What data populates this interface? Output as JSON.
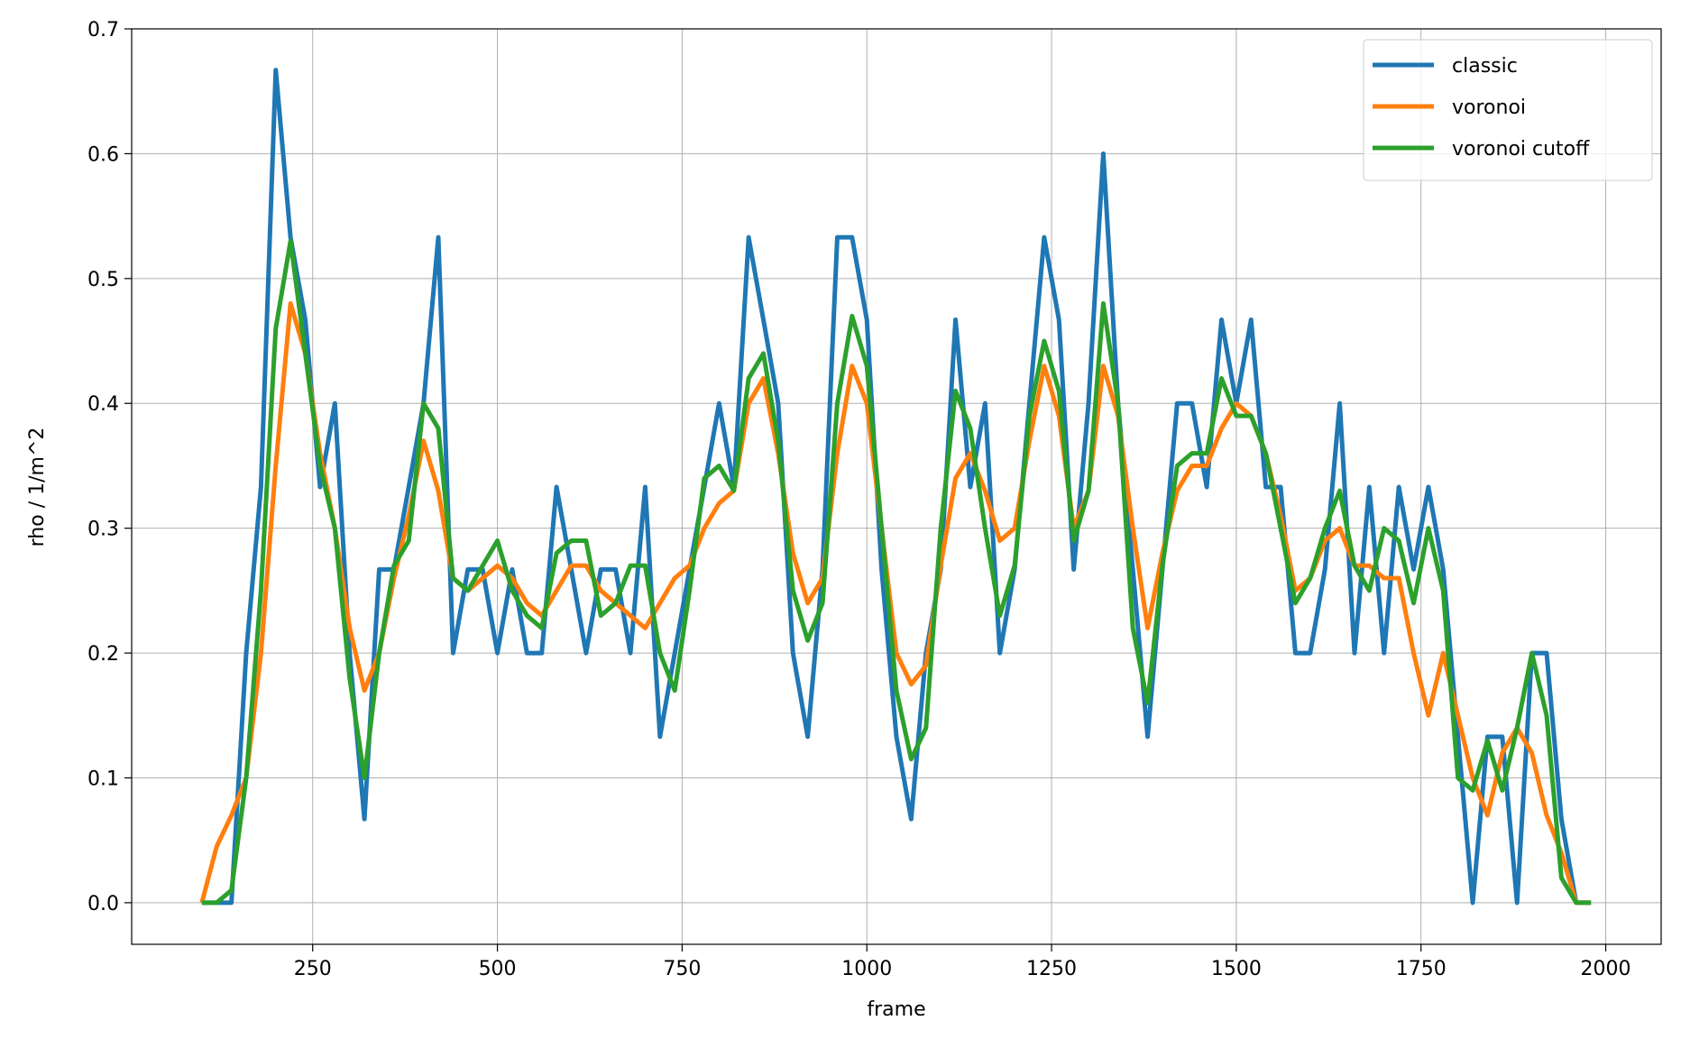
{
  "chart_data": {
    "type": "line",
    "x_label": "frame",
    "y_label": "rho / 1/m^2",
    "x": [
      100,
      120,
      140,
      160,
      180,
      200,
      220,
      240,
      260,
      280,
      300,
      320,
      340,
      360,
      380,
      400,
      420,
      440,
      460,
      480,
      500,
      520,
      540,
      560,
      580,
      600,
      620,
      640,
      660,
      680,
      700,
      720,
      740,
      760,
      780,
      800,
      820,
      840,
      860,
      880,
      900,
      920,
      940,
      960,
      980,
      1000,
      1020,
      1040,
      1060,
      1080,
      1100,
      1120,
      1140,
      1160,
      1180,
      1200,
      1220,
      1240,
      1260,
      1280,
      1300,
      1320,
      1340,
      1360,
      1380,
      1400,
      1420,
      1440,
      1460,
      1480,
      1500,
      1520,
      1540,
      1560,
      1580,
      1600,
      1620,
      1640,
      1660,
      1680,
      1700,
      1720,
      1740,
      1760,
      1780,
      1800,
      1820,
      1840,
      1860,
      1880,
      1900,
      1920,
      1940,
      1960,
      1980
    ],
    "series": [
      {
        "name": "classic",
        "color": "#1f77b4",
        "values": [
          0,
          0,
          0,
          0.2,
          0.333,
          0.667,
          0.533,
          0.467,
          0.333,
          0.4,
          0.2,
          0.067,
          0.267,
          0.267,
          0.333,
          0.4,
          0.533,
          0.2,
          0.267,
          0.267,
          0.2,
          0.267,
          0.2,
          0.2,
          0.333,
          0.267,
          0.2,
          0.267,
          0.267,
          0.2,
          0.333,
          0.133,
          0.2,
          0.267,
          0.333,
          0.4,
          0.333,
          0.533,
          0.467,
          0.4,
          0.2,
          0.133,
          0.267,
          0.533,
          0.533,
          0.467,
          0.267,
          0.133,
          0.067,
          0.2,
          0.267,
          0.467,
          0.333,
          0.4,
          0.2,
          0.267,
          0.4,
          0.533,
          0.467,
          0.267,
          0.4,
          0.6,
          0.4,
          0.267,
          0.133,
          0.267,
          0.4,
          0.4,
          0.333,
          0.467,
          0.4,
          0.467,
          0.333,
          0.333,
          0.2,
          0.2,
          0.267,
          0.4,
          0.2,
          0.333,
          0.2,
          0.333,
          0.267,
          0.333,
          0.267,
          0.133,
          0,
          0.133,
          0.133,
          0,
          0.2,
          0.2,
          0.067,
          0,
          0
        ]
      },
      {
        "name": "voronoi",
        "color": "#ff7f0e",
        "values": [
          0,
          0.045,
          0.07,
          0.1,
          0.2,
          0.35,
          0.48,
          0.44,
          0.36,
          0.3,
          0.22,
          0.17,
          0.2,
          0.26,
          0.31,
          0.37,
          0.33,
          0.26,
          0.25,
          0.26,
          0.27,
          0.26,
          0.24,
          0.23,
          0.25,
          0.27,
          0.27,
          0.25,
          0.24,
          0.23,
          0.22,
          0.24,
          0.26,
          0.27,
          0.3,
          0.32,
          0.33,
          0.4,
          0.42,
          0.36,
          0.28,
          0.24,
          0.26,
          0.36,
          0.43,
          0.4,
          0.3,
          0.2,
          0.175,
          0.19,
          0.27,
          0.34,
          0.36,
          0.33,
          0.29,
          0.3,
          0.37,
          0.43,
          0.39,
          0.3,
          0.33,
          0.43,
          0.39,
          0.3,
          0.22,
          0.28,
          0.33,
          0.35,
          0.35,
          0.38,
          0.4,
          0.39,
          0.36,
          0.31,
          0.25,
          0.26,
          0.29,
          0.3,
          0.27,
          0.27,
          0.26,
          0.26,
          0.2,
          0.15,
          0.2,
          0.15,
          0.1,
          0.07,
          0.12,
          0.14,
          0.12,
          0.07,
          0.04,
          0,
          0
        ]
      },
      {
        "name": "voronoi cutoff",
        "color": "#2ca02c",
        "values": [
          0,
          0,
          0.01,
          0.1,
          0.25,
          0.46,
          0.53,
          0.44,
          0.35,
          0.3,
          0.18,
          0.1,
          0.2,
          0.27,
          0.29,
          0.4,
          0.38,
          0.26,
          0.25,
          0.27,
          0.29,
          0.25,
          0.23,
          0.22,
          0.28,
          0.29,
          0.29,
          0.23,
          0.24,
          0.27,
          0.27,
          0.2,
          0.17,
          0.25,
          0.34,
          0.35,
          0.33,
          0.42,
          0.44,
          0.37,
          0.25,
          0.21,
          0.24,
          0.4,
          0.47,
          0.43,
          0.3,
          0.17,
          0.115,
          0.14,
          0.3,
          0.41,
          0.38,
          0.3,
          0.23,
          0.27,
          0.39,
          0.45,
          0.41,
          0.29,
          0.33,
          0.48,
          0.4,
          0.22,
          0.16,
          0.27,
          0.35,
          0.36,
          0.36,
          0.42,
          0.39,
          0.39,
          0.36,
          0.3,
          0.24,
          0.26,
          0.3,
          0.33,
          0.27,
          0.25,
          0.3,
          0.29,
          0.24,
          0.3,
          0.25,
          0.1,
          0.09,
          0.13,
          0.09,
          0.14,
          0.2,
          0.15,
          0.02,
          0,
          0
        ]
      }
    ],
    "xlim": [
      5,
      2075
    ],
    "ylim": [
      -0.0333,
      0.7
    ],
    "xticks": [
      250,
      500,
      750,
      1000,
      1250,
      1500,
      1750,
      2000
    ],
    "yticks": [
      {
        "value": 0,
        "label": "0.0"
      },
      0.1,
      0.2,
      0.3,
      0.4,
      0.5,
      0.6,
      0.7
    ],
    "grid": true,
    "legend": "upper right"
  }
}
